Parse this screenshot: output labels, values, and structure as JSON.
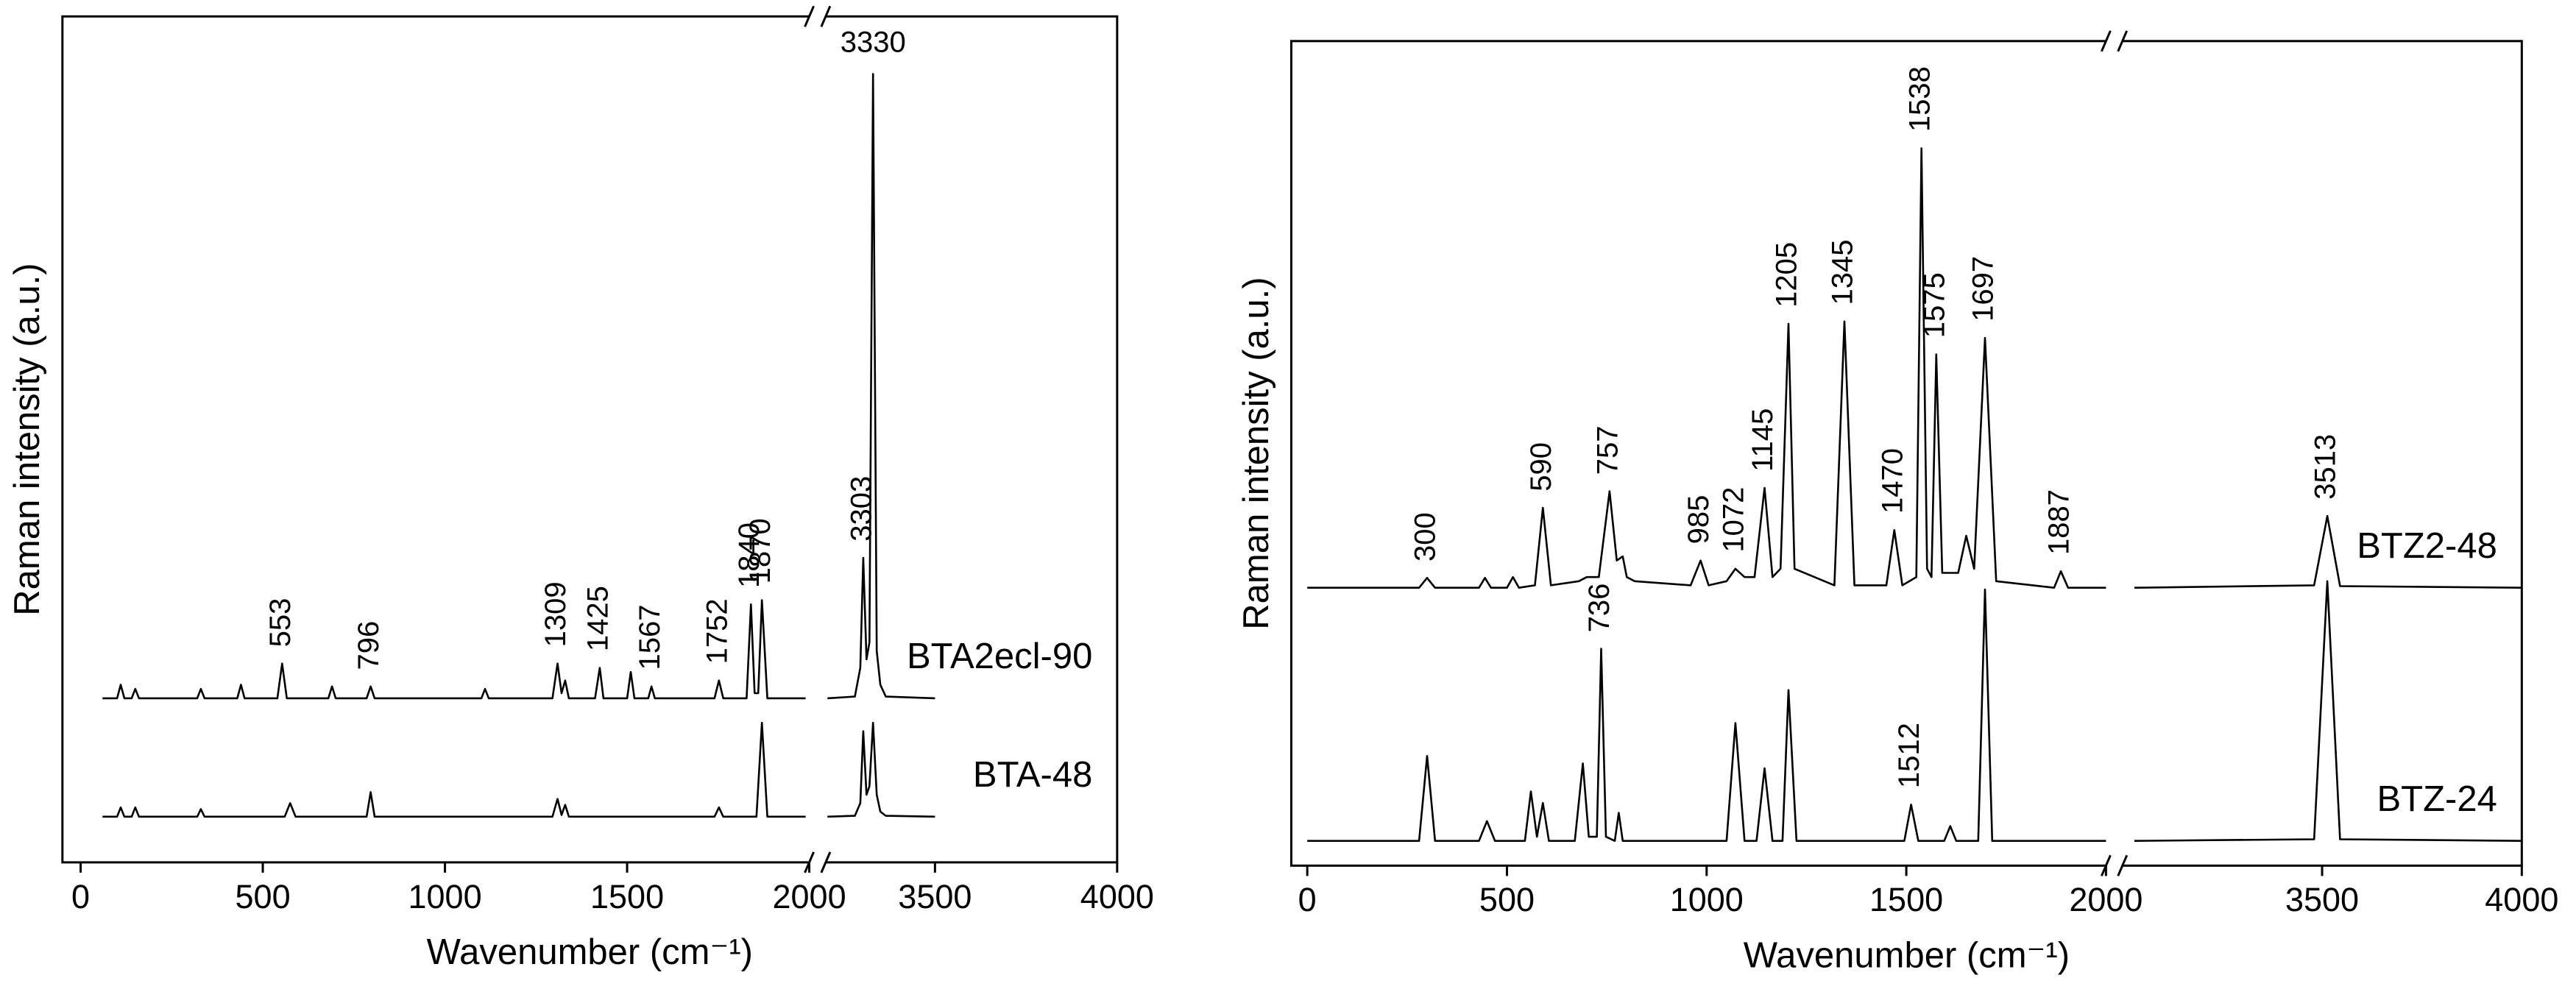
{
  "chart_data": [
    {
      "type": "line",
      "xlabel": "Wavenumber (cm⁻¹)",
      "ylabel": "Raman intensity (a.u.)",
      "xlim": [
        -50,
        4000
      ],
      "xbreak": [
        2000,
        3200
      ],
      "ylim": [
        0,
        100
      ],
      "xticks": [
        0,
        500,
        1000,
        1500,
        2000,
        3500,
        4000
      ],
      "series": [
        {
          "name": "BTA2ecl-90",
          "color": "#000000",
          "x": [
            60,
            100,
            110,
            120,
            140,
            150,
            160,
            320,
            330,
            340,
            430,
            440,
            450,
            540,
            553,
            566,
            680,
            690,
            700,
            785,
            796,
            807,
            1100,
            1110,
            1120,
            1295,
            1309,
            1320,
            1330,
            1340,
            1412,
            1425,
            1435,
            1500,
            1510,
            1520,
            1558,
            1567,
            1576,
            1740,
            1752,
            1764,
            1828,
            1840,
            1850,
            1860,
            1870,
            1885,
            1990,
            null,
            3205,
            3280,
            3295,
            3303,
            3312,
            3320,
            3330,
            3340,
            3350,
            3365,
            3500
          ],
          "values": [
            19.4,
            19.4,
            21,
            19.4,
            19.4,
            20.5,
            19.4,
            19.4,
            20.5,
            19.4,
            19.4,
            21,
            19.4,
            19.4,
            23.5,
            19.4,
            19.4,
            20.8,
            19.4,
            19.4,
            20.8,
            19.4,
            19.4,
            20.5,
            19.4,
            19.4,
            23.5,
            20,
            21.5,
            19.4,
            19.4,
            23,
            19.4,
            19.4,
            22.5,
            19.4,
            19.4,
            20.8,
            19.4,
            19.4,
            21.5,
            19.4,
            19.4,
            30.5,
            20,
            20,
            31,
            19.4,
            19.4,
            null,
            19.4,
            19.6,
            23,
            36,
            24,
            26,
            93.2,
            25,
            21,
            19.6,
            19.4
          ],
          "peaks": [
            553,
            796,
            1309,
            1425,
            1567,
            1752,
            1840,
            1870,
            3303,
            3330
          ]
        },
        {
          "name": "BTA-48",
          "color": "#000000",
          "x": [
            60,
            100,
            110,
            120,
            140,
            150,
            160,
            320,
            330,
            340,
            560,
            575,
            590,
            785,
            796,
            807,
            1295,
            1309,
            1320,
            1330,
            1340,
            1740,
            1752,
            1764,
            1855,
            1870,
            1885,
            1990,
            null,
            3205,
            3280,
            3295,
            3303,
            3312,
            3320,
            3330,
            3340,
            3350,
            3365,
            3500
          ],
          "values": [
            5.4,
            5.4,
            6.5,
            5.4,
            5.4,
            6.5,
            5.4,
            5.4,
            6.3,
            5.4,
            5.4,
            7,
            5.4,
            5.4,
            8.3,
            5.4,
            5.4,
            7.5,
            5.6,
            6.8,
            5.4,
            5.4,
            6.5,
            5.4,
            5.4,
            16.5,
            5.4,
            5.4,
            null,
            5.4,
            5.5,
            7,
            15.5,
            8,
            9,
            16.5,
            8,
            6,
            5.5,
            5.4
          ],
          "peaks": []
        }
      ]
    },
    {
      "type": "line",
      "xlabel": "Wavenumber (cm⁻¹)",
      "ylabel": "Raman intensity (a.u.)",
      "xlim": [
        -40,
        4000
      ],
      "xbreak": [
        2000,
        3000
      ],
      "ylim": [
        0,
        100
      ],
      "xticks": [
        0,
        500,
        1000,
        1500,
        2000,
        3500,
        4000
      ],
      "series": [
        {
          "name": "BTZ2-48",
          "color": "#000000",
          "x": [
            0,
            280,
            300,
            320,
            430,
            445,
            460,
            500,
            515,
            530,
            570,
            590,
            610,
            680,
            700,
            730,
            757,
            775,
            790,
            800,
            820,
            960,
            985,
            1005,
            1050,
            1072,
            1095,
            1120,
            1145,
            1165,
            1185,
            1205,
            1220,
            1320,
            1345,
            1370,
            1450,
            1470,
            1490,
            1525,
            1538,
            1552,
            1563,
            1575,
            1590,
            1630,
            1650,
            1670,
            1697,
            1725,
            1870,
            1887,
            1905,
            2000,
            null,
            3030,
            3480,
            3513,
            3545,
            4000
          ],
          "values": [
            33.7,
            33.7,
            34.9,
            33.7,
            33.7,
            34.9,
            33.7,
            33.7,
            35,
            33.7,
            34,
            43.4,
            34,
            34.5,
            35,
            35,
            45.4,
            37,
            37.5,
            35,
            34.5,
            34,
            37,
            34,
            34.5,
            36,
            35,
            35,
            45.8,
            35,
            36,
            65.7,
            36,
            34,
            66,
            34,
            34,
            40.7,
            34,
            35,
            87,
            36,
            35,
            62,
            35.5,
            35.5,
            40,
            36,
            64,
            34.5,
            33.7,
            35.7,
            33.7,
            33.7,
            null,
            33.7,
            34,
            42.4,
            33.9,
            33.7
          ],
          "peaks": [
            300,
            590,
            757,
            985,
            1072,
            1145,
            1205,
            1345,
            1470,
            1538,
            1575,
            1697,
            1887,
            3513
          ]
        },
        {
          "name": "BTZ-24",
          "color": "#000000",
          "x": [
            0,
            280,
            300,
            320,
            430,
            450,
            470,
            545,
            560,
            575,
            590,
            605,
            670,
            690,
            705,
            725,
            736,
            748,
            770,
            780,
            790,
            1050,
            1072,
            1095,
            1125,
            1145,
            1165,
            1190,
            1205,
            1225,
            1495,
            1512,
            1530,
            1595,
            1610,
            1625,
            1680,
            1697,
            1715,
            2000,
            null,
            3030,
            3480,
            3513,
            3545,
            4000
          ],
          "values": [
            3,
            3,
            13.3,
            3,
            3,
            5.4,
            3,
            3,
            9,
            3.5,
            7.6,
            3,
            3,
            12.4,
            3.5,
            3.5,
            26.3,
            3.5,
            3,
            6.4,
            3,
            3,
            17.3,
            3,
            3,
            11.8,
            3,
            3,
            21.3,
            3,
            3,
            7.4,
            3,
            3,
            4.8,
            3,
            3,
            33.5,
            3,
            3,
            null,
            3,
            3.2,
            34.5,
            3.2,
            3
          ],
          "peaks": [
            736,
            1512
          ]
        }
      ]
    }
  ]
}
